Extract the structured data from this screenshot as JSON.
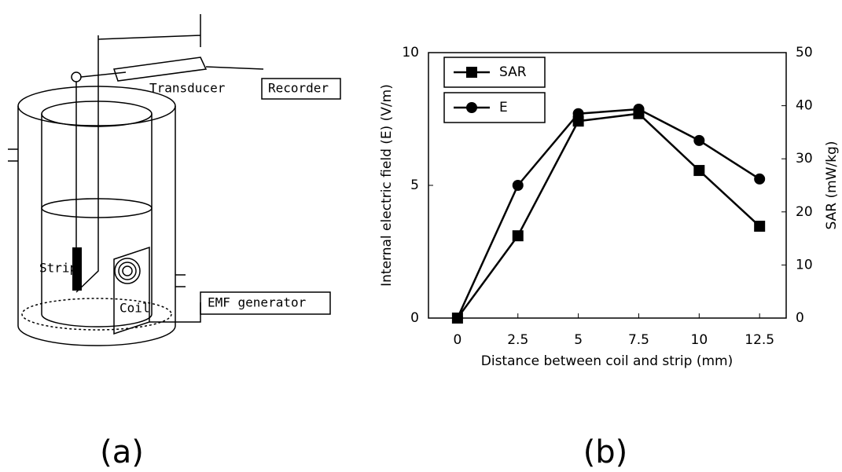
{
  "diagram": {
    "labels": {
      "transducer": "Transducer",
      "recorder": "Recorder",
      "strip": "Strip",
      "coil": "Coil",
      "emf": "EMF generator"
    }
  },
  "panels": {
    "a": "(a)",
    "b": "(b)"
  },
  "chart_data": {
    "type": "line",
    "xlabel": "Distance between coil and strip (mm)",
    "ylabel": "Internal electric field (E) (V/m)",
    "y2label": "SAR (mW/kg)",
    "x": [
      0,
      2.5,
      5,
      7.5,
      10,
      12.5
    ],
    "xlim": [
      -1.2,
      13.6
    ],
    "xticks": [
      0,
      2.5,
      5,
      7.5,
      10,
      12.5
    ],
    "ylim": [
      0,
      10
    ],
    "yticks": [
      0,
      5,
      10
    ],
    "y2lim": [
      0,
      50
    ],
    "y2ticks": [
      0,
      10,
      20,
      30,
      40,
      50
    ],
    "series": [
      {
        "name": "SAR",
        "color": "#000000",
        "marker": "square",
        "axis": "y2",
        "values": [
          0,
          15.5,
          37.1,
          38.5,
          27.8,
          17.3
        ]
      },
      {
        "name": "E",
        "color": "#000000",
        "marker": "circle",
        "axis": "y",
        "values": [
          0,
          5.0,
          7.7,
          7.87,
          6.69,
          5.24
        ]
      }
    ],
    "legend": "upper left"
  }
}
